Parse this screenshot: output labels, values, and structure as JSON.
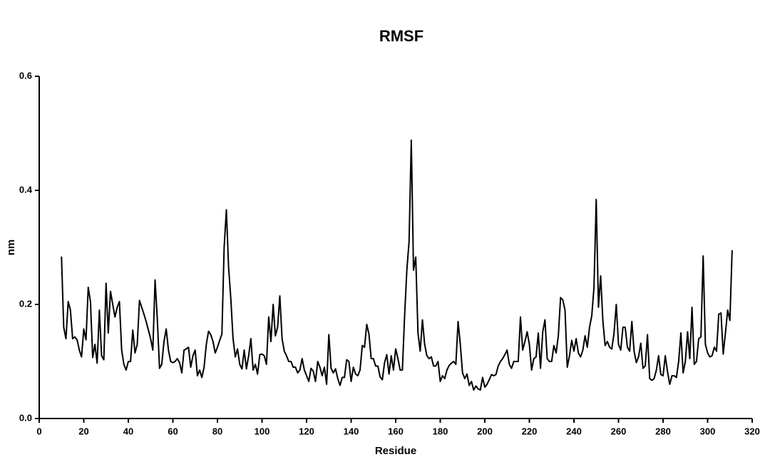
{
  "chart_data": {
    "type": "line",
    "title": "RMSF",
    "x_label": "Residue",
    "y_label": "nm",
    "xlim": [
      0,
      320
    ],
    "xticks": [
      0,
      20,
      40,
      60,
      80,
      100,
      120,
      140,
      160,
      180,
      200,
      220,
      240,
      260,
      280,
      300,
      320
    ],
    "ylim": [
      0,
      0.6
    ],
    "yticks": [
      {
        "value": 0,
        "label": "0.0"
      },
      0.2,
      0.4,
      0.6
    ],
    "series": [
      {
        "name": "RMSF",
        "color": "#000000",
        "x": [
          10,
          11,
          12,
          13,
          14,
          15,
          16,
          17,
          18,
          19,
          20,
          21,
          22,
          23,
          24,
          25,
          26,
          27,
          28,
          29,
          30,
          31,
          32,
          33,
          34,
          35,
          36,
          37,
          38,
          39,
          40,
          41,
          42,
          43,
          44,
          45,
          46,
          47,
          48,
          49,
          50,
          51,
          52,
          53,
          54,
          55,
          56,
          57,
          58,
          59,
          60,
          61,
          62,
          63,
          64,
          65,
          66,
          67,
          68,
          69,
          70,
          71,
          72,
          73,
          74,
          75,
          76,
          77,
          78,
          79,
          80,
          81,
          82,
          83,
          84,
          85,
          86,
          87,
          88,
          89,
          90,
          91,
          92,
          93,
          94,
          95,
          96,
          97,
          98,
          99,
          100,
          101,
          102,
          103,
          104,
          105,
          106,
          107,
          108,
          109,
          110,
          111,
          112,
          113,
          114,
          115,
          116,
          117,
          118,
          119,
          120,
          121,
          122,
          123,
          124,
          125,
          126,
          127,
          128,
          129,
          130,
          131,
          132,
          133,
          134,
          135,
          136,
          137,
          138,
          139,
          140,
          141,
          142,
          143,
          144,
          145,
          146,
          147,
          148,
          149,
          150,
          151,
          152,
          153,
          154,
          155,
          156,
          157,
          158,
          159,
          160,
          161,
          162,
          163,
          164,
          165,
          166,
          167,
          168,
          169,
          170,
          171,
          172,
          173,
          174,
          175,
          176,
          177,
          178,
          179,
          180,
          181,
          182,
          183,
          184,
          185,
          186,
          187,
          188,
          189,
          190,
          191,
          192,
          193,
          194,
          195,
          196,
          197,
          198,
          199,
          200,
          201,
          202,
          203,
          204,
          205,
          206,
          207,
          208,
          209,
          210,
          211,
          212,
          213,
          214,
          215,
          216,
          217,
          218,
          219,
          220,
          221,
          222,
          223,
          224,
          225,
          226,
          227,
          228,
          229,
          230,
          231,
          232,
          233,
          234,
          235,
          236,
          237,
          238,
          239,
          240,
          241,
          242,
          243,
          244,
          245,
          246,
          247,
          248,
          249,
          250,
          251,
          252,
          253,
          254,
          255,
          256,
          257,
          258,
          259,
          260,
          261,
          262,
          263,
          264,
          265,
          266,
          267,
          268,
          269,
          270,
          271,
          272,
          273,
          274,
          275,
          276,
          277,
          278,
          279,
          280,
          281,
          282,
          283,
          284,
          285,
          286,
          287,
          288,
          289,
          290,
          291,
          292,
          293,
          294,
          295,
          296,
          297,
          298,
          299,
          300,
          301,
          302,
          303,
          304,
          305,
          306,
          307,
          308,
          309,
          310,
          311
        ],
        "values": [
          0.284,
          0.16,
          0.14,
          0.205,
          0.19,
          0.14,
          0.143,
          0.138,
          0.12,
          0.108,
          0.157,
          0.138,
          0.23,
          0.205,
          0.107,
          0.13,
          0.097,
          0.19,
          0.11,
          0.103,
          0.237,
          0.15,
          0.223,
          0.2,
          0.178,
          0.195,
          0.205,
          0.12,
          0.095,
          0.085,
          0.1,
          0.1,
          0.155,
          0.115,
          0.13,
          0.207,
          0.195,
          0.183,
          0.17,
          0.155,
          0.14,
          0.12,
          0.243,
          0.175,
          0.088,
          0.095,
          0.135,
          0.157,
          0.12,
          0.1,
          0.098,
          0.1,
          0.105,
          0.098,
          0.08,
          0.12,
          0.122,
          0.125,
          0.09,
          0.11,
          0.12,
          0.075,
          0.085,
          0.072,
          0.09,
          0.13,
          0.153,
          0.147,
          0.135,
          0.115,
          0.125,
          0.137,
          0.148,
          0.3,
          0.366,
          0.265,
          0.21,
          0.14,
          0.108,
          0.122,
          0.095,
          0.087,
          0.12,
          0.087,
          0.11,
          0.14,
          0.085,
          0.095,
          0.078,
          0.112,
          0.113,
          0.11,
          0.095,
          0.178,
          0.135,
          0.2,
          0.145,
          0.16,
          0.215,
          0.14,
          0.118,
          0.11,
          0.1,
          0.1,
          0.09,
          0.09,
          0.08,
          0.085,
          0.105,
          0.085,
          0.075,
          0.065,
          0.088,
          0.083,
          0.065,
          0.1,
          0.09,
          0.075,
          0.09,
          0.06,
          0.147,
          0.088,
          0.08,
          0.087,
          0.07,
          0.058,
          0.072,
          0.072,
          0.103,
          0.1,
          0.065,
          0.09,
          0.078,
          0.075,
          0.085,
          0.128,
          0.125,
          0.165,
          0.148,
          0.105,
          0.105,
          0.092,
          0.092,
          0.073,
          0.068,
          0.098,
          0.112,
          0.078,
          0.11,
          0.085,
          0.122,
          0.105,
          0.085,
          0.085,
          0.18,
          0.26,
          0.31,
          0.488,
          0.26,
          0.283,
          0.15,
          0.118,
          0.173,
          0.13,
          0.11,
          0.105,
          0.108,
          0.092,
          0.092,
          0.1,
          0.065,
          0.075,
          0.07,
          0.085,
          0.093,
          0.097,
          0.1,
          0.095,
          0.17,
          0.13,
          0.08,
          0.07,
          0.078,
          0.058,
          0.065,
          0.05,
          0.057,
          0.052,
          0.05,
          0.072,
          0.055,
          0.06,
          0.068,
          0.077,
          0.075,
          0.077,
          0.092,
          0.1,
          0.105,
          0.112,
          0.12,
          0.095,
          0.088,
          0.1,
          0.1,
          0.1,
          0.178,
          0.12,
          0.135,
          0.152,
          0.13,
          0.085,
          0.105,
          0.108,
          0.15,
          0.088,
          0.152,
          0.173,
          0.105,
          0.1,
          0.1,
          0.128,
          0.115,
          0.145,
          0.212,
          0.208,
          0.19,
          0.09,
          0.11,
          0.137,
          0.118,
          0.14,
          0.115,
          0.108,
          0.12,
          0.145,
          0.125,
          0.16,
          0.18,
          0.23,
          0.384,
          0.195,
          0.25,
          0.17,
          0.128,
          0.135,
          0.125,
          0.122,
          0.15,
          0.2,
          0.13,
          0.12,
          0.16,
          0.16,
          0.125,
          0.118,
          0.17,
          0.118,
          0.098,
          0.108,
          0.132,
          0.088,
          0.092,
          0.147,
          0.07,
          0.067,
          0.07,
          0.085,
          0.11,
          0.077,
          0.075,
          0.11,
          0.082,
          0.06,
          0.075,
          0.075,
          0.072,
          0.1,
          0.15,
          0.08,
          0.1,
          0.152,
          0.105,
          0.195,
          0.095,
          0.1,
          0.14,
          0.143,
          0.285,
          0.13,
          0.115,
          0.108,
          0.11,
          0.125,
          0.118,
          0.183,
          0.185,
          0.113,
          0.15,
          0.19,
          0.172,
          0.295
        ]
      }
    ]
  }
}
